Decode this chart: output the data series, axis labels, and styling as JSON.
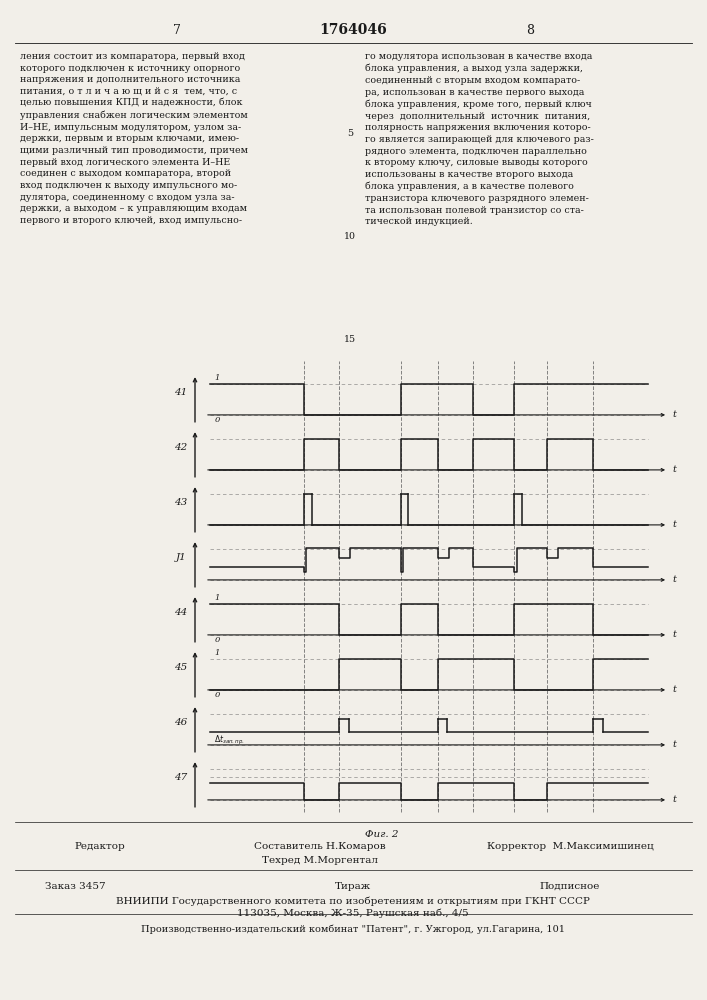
{
  "page_number_left": "7",
  "page_number_center": "1764046",
  "page_number_right": "8",
  "figure_label": "Φиг. 2",
  "channel_labels": [
    "41",
    "42",
    "43",
    "J1",
    "44",
    "45",
    "46",
    "47"
  ],
  "bottom_text_left": "Редактор",
  "bottom_text_center1": "Составитель Н.Комаров",
  "bottom_text_center2": "Техред М.Моргентал",
  "bottom_text_right": "Корректор  М.Максимишинец",
  "zakas_text": "Заказ 3457",
  "tirazh_text": "Тираж",
  "podpis_text": "Подписное",
  "vniiipi_text": "ВНИИПИ Государственного комитета по изобретениям и открытиям при ГКНТ СССР",
  "address_text": "113035, Москва, Ж-35, Раушская наб., 4/5",
  "production_text": "Производственно-издательский комбинат \"Патент\", г. Ужгород, ул.Гагарина, 101",
  "left_col_text": "ления состоит из компаратора, первый вход\nкоторого подключен к источнику опорного\nнапряжения и дополнительного источника\nпитания, о т л и ч а ю щ и й с я  тем, что, с\nцелью повышения КПД и надежности, блок\nуправления снабжен логическим элементом\nИ–НЕ, импульсным модулятором, узлом за-\nдержки, первым и вторым ключами, имею-\nщими различный тип проводимости, причем\nпервый вход логического элемента И–НЕ\nсоединен с выходом компаратора, второй\nвход подключен к выходу импульсного мо-\nдулятора, соединенному с входом узла за-\nдержки, а выходом – к управляющим входам\nпервого и второго ключей, вход импульсно-",
  "right_col_text": "го модулятора использован в качестве входа\nблока управления, а выход узла задержки,\nсоединенный с вторым входом компарато-\nра, использован в качестве первого выхода\nблока управления, кроме того, первый ключ\nчерез  дополнительный  источник  питания,\nполярность напряжения включения которо-\nго является запирающей для ключевого раз-\nрядного элемента, подключен параллельно\nк второму ключу, силовые выводы которого\nиспользованы в качестве второго выхода\nблока управления, а в качестве полевого\nтранзистора ключевого разрядного элемен-\nта использован полевой транзистор со ста-\nтической индукцией.",
  "line_numbers": [
    "5",
    "10",
    "15"
  ],
  "background_color": "#f2efe9",
  "line_color": "#1a1a1a",
  "dash_color": "#666666",
  "text_color": "#1a1a1a"
}
